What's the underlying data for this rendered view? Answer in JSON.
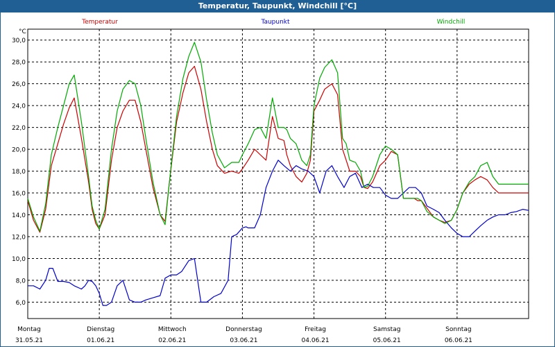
{
  "window": {
    "title": "Temperatur, Taupunkt, Windchill [°C]"
  },
  "colors": {
    "title_bg": "#1f5f93",
    "temperatur": "#cc0000",
    "taupunkt": "#0000cc",
    "windchill": "#00aa00",
    "grid": "#000000"
  },
  "chart_data": {
    "type": "line",
    "title": "Temperatur, Taupunkt, Windchill [°C]",
    "ylabel": "°C",
    "ylim": [
      4.5,
      31
    ],
    "yticks": [
      "6,0",
      "8,0",
      "10,0",
      "12,0",
      "14,0",
      "16,0",
      "18,0",
      "20,0",
      "22,0",
      "24,0",
      "26,0",
      "28,0",
      "30,0"
    ],
    "ytick_values": [
      6,
      8,
      10,
      12,
      14,
      16,
      18,
      20,
      22,
      24,
      26,
      28,
      30
    ],
    "xlim": [
      0,
      7
    ],
    "grid": true,
    "legend_placement": "top",
    "days": [
      {
        "weekday": "Montag",
        "date": "31.05.21"
      },
      {
        "weekday": "Dienstag",
        "date": "01.06.21"
      },
      {
        "weekday": "Mittwoch",
        "date": "02.06.21"
      },
      {
        "weekday": "Donnerstag",
        "date": "03.06.21"
      },
      {
        "weekday": "Freitag",
        "date": "04.06.21"
      },
      {
        "weekday": "Samstag",
        "date": "05.06.21"
      },
      {
        "weekday": "Sonntag",
        "date": "06.06.21"
      }
    ],
    "series": [
      {
        "name": "Temperatur",
        "color": "#cc0000",
        "x": [
          0,
          0.08,
          0.17,
          0.25,
          0.33,
          0.42,
          0.5,
          0.58,
          0.65,
          0.75,
          0.85,
          0.9,
          0.95,
          1.0,
          1.08,
          1.17,
          1.25,
          1.33,
          1.42,
          1.5,
          1.58,
          1.65,
          1.75,
          1.85,
          1.92,
          1.98,
          2.08,
          2.17,
          2.25,
          2.33,
          2.42,
          2.5,
          2.58,
          2.65,
          2.75,
          2.85,
          2.95,
          3.0,
          3.08,
          3.17,
          3.25,
          3.33,
          3.42,
          3.5,
          3.58,
          3.62,
          3.67,
          3.75,
          3.83,
          3.9,
          3.95,
          4.0,
          4.08,
          4.15,
          4.25,
          4.33,
          4.4,
          4.45,
          4.5,
          4.58,
          4.65,
          4.7,
          4.75,
          4.82,
          4.92,
          5.0,
          5.08,
          5.17,
          5.25,
          5.33,
          5.4,
          5.45,
          5.5,
          5.58,
          5.67,
          5.75,
          5.83,
          5.92,
          6.0,
          6.08,
          6.17,
          6.25,
          6.33,
          6.42,
          6.5,
          6.58,
          6.67,
          6.75,
          6.83,
          6.92,
          7.0
        ],
        "y": [
          15.3,
          13.5,
          12.4,
          14.5,
          18.5,
          20.5,
          22.3,
          23.8,
          24.7,
          21.0,
          17.0,
          14.5,
          13.2,
          12.7,
          14.0,
          19.0,
          22.0,
          23.5,
          24.5,
          24.5,
          22.5,
          20.0,
          16.5,
          14.0,
          13.4,
          17.0,
          22.5,
          25.2,
          27.0,
          27.6,
          25.5,
          22.5,
          20.0,
          18.5,
          17.8,
          18.0,
          17.8,
          18.2,
          19.0,
          20.0,
          19.5,
          19.0,
          23.0,
          21.0,
          20.8,
          19.5,
          18.5,
          17.5,
          17.0,
          17.8,
          19.0,
          23.5,
          24.5,
          25.5,
          26.0,
          25.0,
          20.0,
          19.0,
          18.0,
          18.0,
          17.5,
          16.5,
          16.4,
          17.0,
          18.5,
          19.0,
          19.8,
          19.5,
          15.5,
          15.5,
          15.5,
          15.3,
          15.3,
          14.6,
          13.8,
          13.5,
          13.3,
          13.5,
          14.5,
          16.0,
          16.8,
          17.2,
          17.5,
          17.2,
          16.5,
          16.0,
          16.0,
          16.0,
          16.0,
          16.0,
          16.0
        ]
      },
      {
        "name": "Taupunkt",
        "color": "#0000cc",
        "x": [
          0,
          0.08,
          0.17,
          0.25,
          0.3,
          0.35,
          0.42,
          0.5,
          0.58,
          0.65,
          0.75,
          0.8,
          0.85,
          0.9,
          0.95,
          1.0,
          1.05,
          1.1,
          1.17,
          1.25,
          1.33,
          1.42,
          1.5,
          1.58,
          1.65,
          1.75,
          1.85,
          1.92,
          2.0,
          2.08,
          2.15,
          2.25,
          2.33,
          2.42,
          2.5,
          2.6,
          2.7,
          2.8,
          2.85,
          2.92,
          3.0,
          3.05,
          3.08,
          3.17,
          3.25,
          3.33,
          3.42,
          3.5,
          3.58,
          3.67,
          3.75,
          3.83,
          3.92,
          4.0,
          4.08,
          4.17,
          4.25,
          4.33,
          4.42,
          4.5,
          4.58,
          4.67,
          4.75,
          4.83,
          4.92,
          5.0,
          5.08,
          5.17,
          5.25,
          5.33,
          5.42,
          5.5,
          5.58,
          5.67,
          5.75,
          5.83,
          5.92,
          6.0,
          6.08,
          6.17,
          6.25,
          6.33,
          6.42,
          6.5,
          6.58,
          6.67,
          6.75,
          6.83,
          6.92,
          7.0
        ],
        "y": [
          7.5,
          7.5,
          7.2,
          8.0,
          9.1,
          9.1,
          7.9,
          7.9,
          7.8,
          7.5,
          7.2,
          7.5,
          8.0,
          7.9,
          7.5,
          6.8,
          5.7,
          5.7,
          6.0,
          7.5,
          8.0,
          6.2,
          6.0,
          6.0,
          6.2,
          6.4,
          6.6,
          8.2,
          8.5,
          8.5,
          8.8,
          9.8,
          10.0,
          6.0,
          6.0,
          6.5,
          6.8,
          8.0,
          12.0,
          12.2,
          12.8,
          12.9,
          12.8,
          12.8,
          14.0,
          16.5,
          18.0,
          19.0,
          18.5,
          18.0,
          18.5,
          18.2,
          18.0,
          17.5,
          16.0,
          18.0,
          18.5,
          17.5,
          16.5,
          17.5,
          17.8,
          16.5,
          16.8,
          16.5,
          16.5,
          15.8,
          15.5,
          15.5,
          16.0,
          16.5,
          16.5,
          16.0,
          14.8,
          14.5,
          14.2,
          13.5,
          12.8,
          12.3,
          12.0,
          12.0,
          12.5,
          13.0,
          13.5,
          13.8,
          14.0,
          14.0,
          14.2,
          14.3,
          14.5,
          14.4
        ]
      },
      {
        "name": "Windchill",
        "color": "#00aa00",
        "x": [
          0,
          0.08,
          0.17,
          0.25,
          0.33,
          0.42,
          0.5,
          0.58,
          0.65,
          0.75,
          0.85,
          0.9,
          0.95,
          1.0,
          1.08,
          1.17,
          1.25,
          1.33,
          1.42,
          1.5,
          1.58,
          1.65,
          1.75,
          1.85,
          1.92,
          1.98,
          2.08,
          2.17,
          2.25,
          2.33,
          2.42,
          2.5,
          2.58,
          2.65,
          2.75,
          2.85,
          2.95,
          3.0,
          3.08,
          3.17,
          3.25,
          3.33,
          3.42,
          3.5,
          3.58,
          3.62,
          3.67,
          3.75,
          3.83,
          3.9,
          3.95,
          4.0,
          4.08,
          4.15,
          4.25,
          4.33,
          4.4,
          4.45,
          4.5,
          4.58,
          4.65,
          4.7,
          4.75,
          4.82,
          4.92,
          5.0,
          5.08,
          5.17,
          5.25,
          5.33,
          5.4,
          5.45,
          5.5,
          5.58,
          5.67,
          5.75,
          5.83,
          5.92,
          6.0,
          6.08,
          6.17,
          6.25,
          6.33,
          6.42,
          6.5,
          6.58,
          6.67,
          6.75,
          6.83,
          6.92,
          7.0
        ],
        "y": [
          15.5,
          13.8,
          12.5,
          15.0,
          19.5,
          22.0,
          24.0,
          26.0,
          26.8,
          22.5,
          17.5,
          14.8,
          13.5,
          12.7,
          14.5,
          20.0,
          23.5,
          25.5,
          26.3,
          26.0,
          24.0,
          21.0,
          17.0,
          14.0,
          13.1,
          17.0,
          23.0,
          26.5,
          28.5,
          29.8,
          28.0,
          24.5,
          21.5,
          19.5,
          18.3,
          18.8,
          18.8,
          19.5,
          20.5,
          21.8,
          22.0,
          21.0,
          24.7,
          22.0,
          22.0,
          21.8,
          21.0,
          20.5,
          19.0,
          18.5,
          19.5,
          24.0,
          26.5,
          27.5,
          28.2,
          27.0,
          21.0,
          20.5,
          19.0,
          18.8,
          18.0,
          16.5,
          16.6,
          17.5,
          19.5,
          20.3,
          20.0,
          19.5,
          15.5,
          15.5,
          15.5,
          15.5,
          15.3,
          14.3,
          13.8,
          13.5,
          13.2,
          13.5,
          14.5,
          16.0,
          17.0,
          17.5,
          18.5,
          18.8,
          17.5,
          16.8,
          16.8,
          16.8,
          16.8,
          16.8,
          16.8
        ]
      }
    ]
  }
}
